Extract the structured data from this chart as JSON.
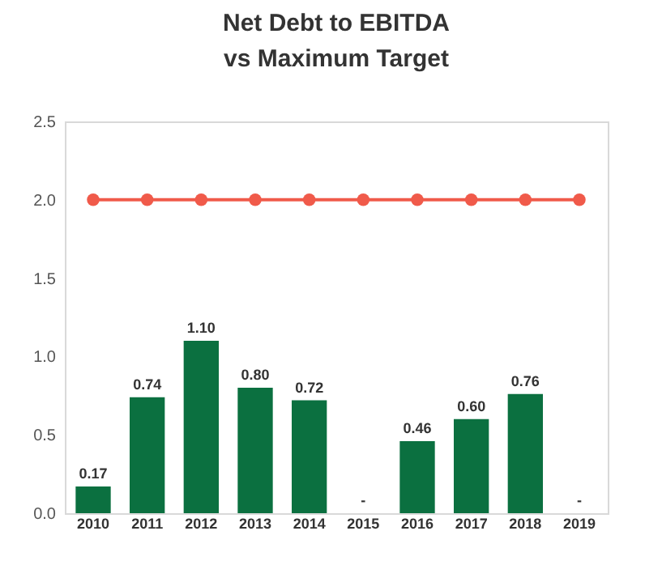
{
  "chart_data": {
    "type": "bar",
    "title": "Net Debt to EBITDA\nvs Maximum Target",
    "categories": [
      "2010",
      "2011",
      "2012",
      "2013",
      "2014",
      "2015",
      "2016",
      "2017",
      "2018",
      "2019"
    ],
    "series": [
      {
        "color": "#0b7040",
        "values": [
          0.17,
          0.74,
          1.1,
          0.8,
          0.72,
          null,
          0.46,
          0.6,
          0.76,
          null
        ],
        "value_labels": [
          "0.17",
          "0.74",
          "1.10",
          "0.80",
          "0.72",
          "-",
          "0.46",
          "0.60",
          "0.76",
          "-"
        ]
      },
      {
        "type": "line",
        "color": "#f05a4a",
        "values": [
          2,
          2,
          2,
          2,
          2,
          2,
          2,
          2,
          2,
          2
        ]
      }
    ],
    "marker": "circle",
    "ylim": [
      0,
      2.5
    ],
    "yticks": [
      {
        "value": 0,
        "label": "0.0"
      },
      {
        "value": 0.5,
        "label": "0.5"
      },
      {
        "value": 1,
        "label": "1.0"
      },
      {
        "value": 1.5,
        "label": "1.5"
      },
      {
        "value": 2,
        "label": "2.0"
      },
      {
        "value": 2.5,
        "label": "2.5"
      }
    ]
  }
}
